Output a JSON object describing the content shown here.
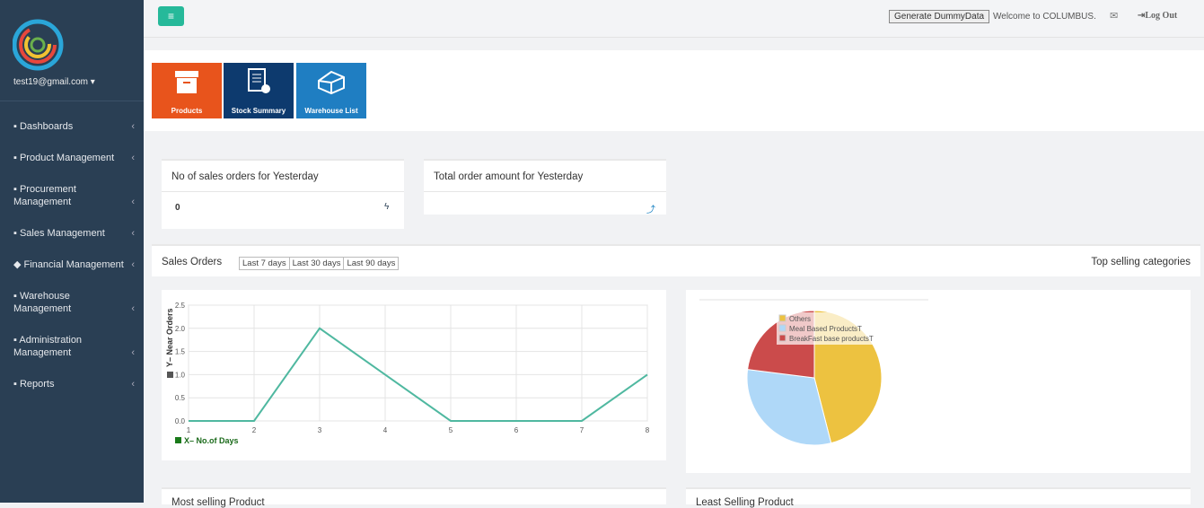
{
  "topbar": {
    "generate_button": "Generate DummyData",
    "welcome": "Welcome to COLUMBUS.",
    "logout": "Log Out"
  },
  "sidebar": {
    "user": "test19@gmail.com",
    "menu": [
      "Dashboards",
      "Product Management",
      "Procurement Management",
      "Sales Management",
      "Financial Management",
      "Warehouse Management",
      "Administration Management",
      "Reports"
    ]
  },
  "shortcuts": [
    "Products",
    "Stock Summary",
    "Warehouse List"
  ],
  "stats": [
    {
      "title": "No of sales orders for Yesterday",
      "value": 0
    },
    {
      "title": "Total order amount for Yesterday"
    }
  ],
  "sales_orders": {
    "title": "Sales Orders",
    "filters": [
      "Last 7 days",
      "Last 30 days",
      "Last 90 days"
    ],
    "right_title": "Top selling categories"
  },
  "chart_data": [
    {
      "type": "line",
      "x_label": "X– No.of Days",
      "y_label": "Y– Near Orders",
      "x": [
        1,
        2,
        3,
        4,
        5,
        6,
        7,
        8
      ],
      "values": [
        0,
        0,
        2,
        1,
        0,
        0,
        0,
        1
      ],
      "color": "#4fb8a0",
      "xlim": [
        1,
        8
      ],
      "xticks": [
        1,
        2,
        3,
        4,
        5,
        6,
        7,
        8
      ],
      "ylim": [
        0,
        2.5
      ],
      "yticks": [
        {
          "value": 0,
          "label": "0.0"
        },
        {
          "value": 0.5,
          "label": "0.5"
        },
        {
          "value": 1,
          "label": "1.0"
        },
        {
          "value": 1.5,
          "label": "1.5"
        },
        {
          "value": 2,
          "label": "2.0"
        },
        {
          "value": 2.5,
          "label": "2.5"
        }
      ],
      "grid": true
    },
    {
      "type": "pie",
      "categories": [
        "Others",
        "Meal Based ProductsT",
        "BreakFast base productsT"
      ],
      "values": [
        46,
        31,
        23
      ],
      "colors": [
        "#edc240",
        "#afd8f8",
        "#cb4b4b"
      ]
    }
  ],
  "bottom": [
    "Most selling Product",
    "Least Selling Product"
  ]
}
